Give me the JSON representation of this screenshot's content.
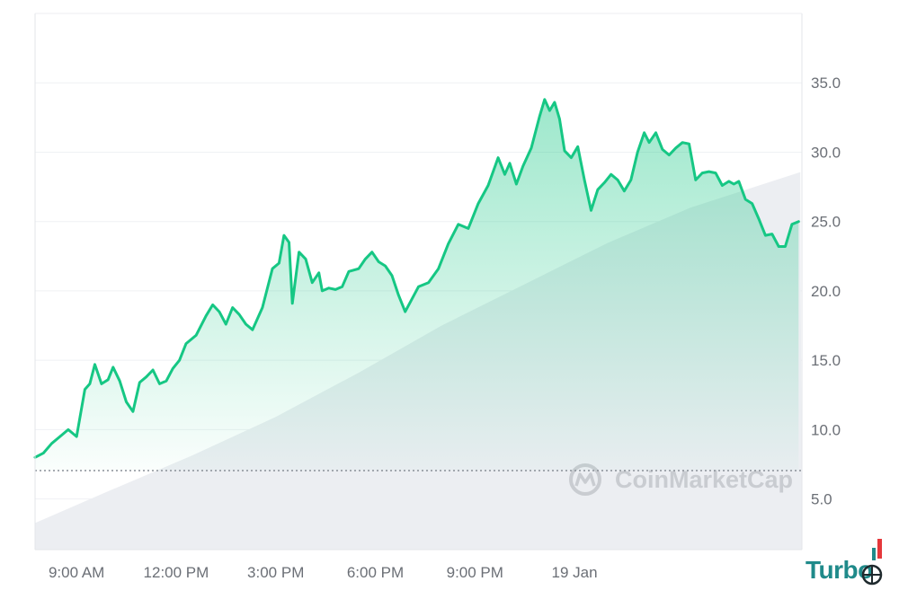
{
  "chart_data": {
    "type": "area",
    "series": [
      {
        "values": [
          [
            7.75,
            8.0
          ],
          [
            8.0,
            8.3
          ],
          [
            8.25,
            9.0
          ],
          [
            8.5,
            9.5
          ],
          [
            8.75,
            10.0
          ],
          [
            9.0,
            9.5
          ],
          [
            9.25,
            12.9
          ],
          [
            9.4,
            13.3
          ],
          [
            9.55,
            14.7
          ],
          [
            9.75,
            13.3
          ],
          [
            9.95,
            13.6
          ],
          [
            10.1,
            14.5
          ],
          [
            10.3,
            13.5
          ],
          [
            10.5,
            12.0
          ],
          [
            10.7,
            11.3
          ],
          [
            10.9,
            13.4
          ],
          [
            11.1,
            13.8
          ],
          [
            11.3,
            14.3
          ],
          [
            11.5,
            13.3
          ],
          [
            11.7,
            13.5
          ],
          [
            11.9,
            14.4
          ],
          [
            12.1,
            15.0
          ],
          [
            12.3,
            16.2
          ],
          [
            12.6,
            16.8
          ],
          [
            12.9,
            18.2
          ],
          [
            13.1,
            19.0
          ],
          [
            13.3,
            18.5
          ],
          [
            13.5,
            17.6
          ],
          [
            13.7,
            18.8
          ],
          [
            13.9,
            18.3
          ],
          [
            14.1,
            17.6
          ],
          [
            14.3,
            17.2
          ],
          [
            14.6,
            18.8
          ],
          [
            14.9,
            21.6
          ],
          [
            15.1,
            22.0
          ],
          [
            15.25,
            24.0
          ],
          [
            15.4,
            23.5
          ],
          [
            15.5,
            19.1
          ],
          [
            15.7,
            22.8
          ],
          [
            15.9,
            22.3
          ],
          [
            16.1,
            20.6
          ],
          [
            16.3,
            21.3
          ],
          [
            16.4,
            20.0
          ],
          [
            16.6,
            20.2
          ],
          [
            16.8,
            20.1
          ],
          [
            17.0,
            20.3
          ],
          [
            17.2,
            21.4
          ],
          [
            17.5,
            21.6
          ],
          [
            17.7,
            22.3
          ],
          [
            17.9,
            22.8
          ],
          [
            18.1,
            22.1
          ],
          [
            18.3,
            21.8
          ],
          [
            18.5,
            21.1
          ],
          [
            18.7,
            19.7
          ],
          [
            18.9,
            18.5
          ],
          [
            19.1,
            19.4
          ],
          [
            19.3,
            20.3
          ],
          [
            19.6,
            20.6
          ],
          [
            19.9,
            21.6
          ],
          [
            20.2,
            23.4
          ],
          [
            20.5,
            24.8
          ],
          [
            20.8,
            24.5
          ],
          [
            21.1,
            26.3
          ],
          [
            21.4,
            27.6
          ],
          [
            21.7,
            29.6
          ],
          [
            21.9,
            28.4
          ],
          [
            22.05,
            29.2
          ],
          [
            22.25,
            27.7
          ],
          [
            22.45,
            29.0
          ],
          [
            22.7,
            30.3
          ],
          [
            22.95,
            32.6
          ],
          [
            23.1,
            33.8
          ],
          [
            23.25,
            33.0
          ],
          [
            23.4,
            33.6
          ],
          [
            23.55,
            32.4
          ],
          [
            23.7,
            30.1
          ],
          [
            23.9,
            29.6
          ],
          [
            24.1,
            30.4
          ],
          [
            24.3,
            28.0
          ],
          [
            24.5,
            25.8
          ],
          [
            24.7,
            27.3
          ],
          [
            24.9,
            27.8
          ],
          [
            25.1,
            28.4
          ],
          [
            25.3,
            28.0
          ],
          [
            25.5,
            27.2
          ],
          [
            25.7,
            28.0
          ],
          [
            25.9,
            30.0
          ],
          [
            26.1,
            31.4
          ],
          [
            26.25,
            30.7
          ],
          [
            26.45,
            31.4
          ],
          [
            26.65,
            30.2
          ],
          [
            26.85,
            29.8
          ],
          [
            27.05,
            30.3
          ],
          [
            27.25,
            30.7
          ],
          [
            27.45,
            30.6
          ],
          [
            27.65,
            28.0
          ],
          [
            27.85,
            28.5
          ],
          [
            28.05,
            28.6
          ],
          [
            28.25,
            28.5
          ],
          [
            28.45,
            27.6
          ],
          [
            28.65,
            27.9
          ],
          [
            28.8,
            27.7
          ],
          [
            28.95,
            27.9
          ],
          [
            29.15,
            26.6
          ],
          [
            29.35,
            26.3
          ],
          [
            29.55,
            25.2
          ],
          [
            29.75,
            24.0
          ],
          [
            29.95,
            24.1
          ],
          [
            30.15,
            23.2
          ],
          [
            30.35,
            23.2
          ],
          [
            30.55,
            24.8
          ],
          [
            30.75,
            25.0
          ]
        ],
        "color": "#16c784"
      }
    ],
    "volume": [
      [
        7.75,
        0.9
      ],
      [
        10.0,
        2.0
      ],
      [
        12.5,
        3.2
      ],
      [
        15.0,
        4.5
      ],
      [
        17.5,
        6.0
      ],
      [
        20.0,
        7.6
      ],
      [
        22.5,
        9.0
      ],
      [
        25.0,
        10.4
      ],
      [
        27.5,
        11.6
      ],
      [
        30.8,
        12.8
      ]
    ],
    "x_ticks": [
      {
        "value": 9,
        "label": "9:00 AM"
      },
      {
        "value": 12,
        "label": "12:00 PM"
      },
      {
        "value": 15,
        "label": "3:00 PM"
      },
      {
        "value": 18,
        "label": "6:00 PM"
      },
      {
        "value": 21,
        "label": "9:00 PM"
      },
      {
        "value": 24,
        "label": "19 Jan"
      }
    ],
    "y_ticks": [
      {
        "value": 5,
        "label": "5.0"
      },
      {
        "value": 10,
        "label": "10.0"
      },
      {
        "value": 15,
        "label": "15.0"
      },
      {
        "value": 20,
        "label": "20.0"
      },
      {
        "value": 25,
        "label": "25.0"
      },
      {
        "value": 30,
        "label": "30.0"
      },
      {
        "value": 35,
        "label": "35.0"
      }
    ],
    "xlim": [
      7.75,
      30.85
    ],
    "ylim": [
      1.35,
      40
    ],
    "reference_line": 7.05,
    "grid": true,
    "watermark": "CoinMarketCap",
    "colors": {
      "line": "#16c784",
      "fill": "#16c784",
      "volume": "#eceef2",
      "grid": "#eff1f4",
      "reference": "#8a8f97",
      "tick_text": "#6b6f76",
      "watermark": "#c9ccd1"
    }
  },
  "brand": {
    "logo_text": "Turbo",
    "logo_color": "#1f8a8a",
    "accent_color": "#e5383b"
  }
}
